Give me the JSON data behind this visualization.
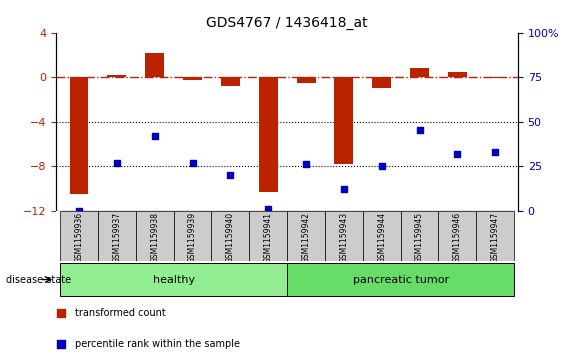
{
  "title": "GDS4767 / 1436418_at",
  "samples": [
    "GSM1159936",
    "GSM1159937",
    "GSM1159938",
    "GSM1159939",
    "GSM1159940",
    "GSM1159941",
    "GSM1159942",
    "GSM1159943",
    "GSM1159944",
    "GSM1159945",
    "GSM1159946",
    "GSM1159947"
  ],
  "transformed_count": [
    -10.5,
    0.2,
    2.2,
    -0.3,
    -0.8,
    -10.3,
    -0.5,
    -7.8,
    -1.0,
    0.8,
    0.5,
    -0.1
  ],
  "percentile_rank": [
    0,
    27,
    42,
    27,
    20,
    1,
    26,
    12,
    25,
    45,
    32,
    33
  ],
  "groups": [
    "healthy",
    "healthy",
    "healthy",
    "healthy",
    "healthy",
    "healthy",
    "pancreatic tumor",
    "pancreatic tumor",
    "pancreatic tumor",
    "pancreatic tumor",
    "pancreatic tumor",
    "pancreatic tumor"
  ],
  "healthy_color": "#90EE90",
  "tumor_color": "#66DD66",
  "bar_color": "#BB2200",
  "dot_color": "#0000BB",
  "label_bg": "#CCCCCC",
  "ylim_left": [
    -12,
    4
  ],
  "ylim_right": [
    0,
    100
  ],
  "yticks_left": [
    -12,
    -8,
    -4,
    0,
    4
  ],
  "yticks_right": [
    0,
    25,
    50,
    75,
    100
  ],
  "dotted_lines": [
    -4,
    -8
  ],
  "bar_width": 0.5,
  "n_healthy": 6,
  "n_tumor": 6
}
